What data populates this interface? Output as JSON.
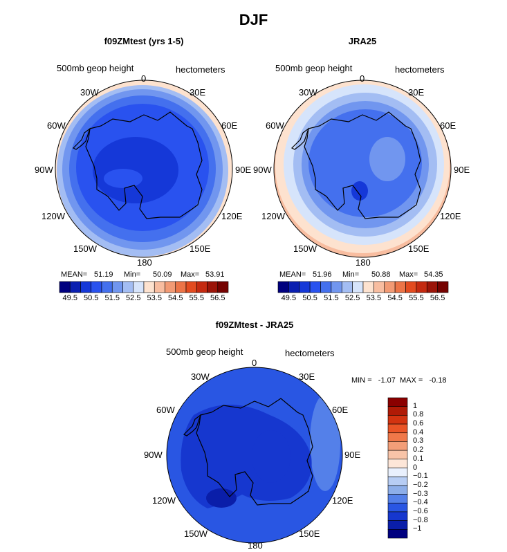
{
  "figure": {
    "title": "DJF"
  },
  "panels": [
    {
      "title": "f09ZMtest (yrs 1-5)",
      "field_label": "500mb geop height",
      "units_label": "hectometers",
      "stats": {
        "mean_label": "MEAN=",
        "mean": "51.19",
        "min_label": "Min=",
        "min": "50.09",
        "max_label": "Max=",
        "max": "53.91"
      }
    },
    {
      "title": "JRA25",
      "field_label": "500mb geop height",
      "units_label": "hectometers",
      "stats": {
        "mean_label": "MEAN=",
        "mean": "51.96",
        "min_label": "Min=",
        "min": "50.88",
        "max_label": "Max=",
        "max": "54.35"
      }
    },
    {
      "title": "f09ZMtest - JRA25",
      "field_label": "500mb geop height",
      "units_label": "hectometers",
      "stats": {
        "text": "MIN =   -1.07  MAX =   -0.18"
      }
    }
  ],
  "longitude_labels": [
    "0",
    "30E",
    "60E",
    "90E",
    "120E",
    "150E",
    "180",
    "150W",
    "120W",
    "90W",
    "60W",
    "30W"
  ],
  "colorbar_horizontal": {
    "tick_labels": [
      "49.5",
      "50.5",
      "51.5",
      "52.5",
      "53.5",
      "54.5",
      "55.5",
      "56.5"
    ],
    "colors": [
      "#00007f",
      "#0a1fb0",
      "#1538d8",
      "#2952ef",
      "#4470ee",
      "#7196ef",
      "#a3bdf3",
      "#d6e4fb",
      "#fde2cf",
      "#f8bda0",
      "#f29a74",
      "#ec7447",
      "#e34b1f",
      "#c42a10",
      "#9b1408",
      "#750200"
    ]
  },
  "colorbar_vertical": {
    "tick_labels": [
      "1",
      "0.8",
      "0.6",
      "0.4",
      "0.3",
      "0.2",
      "0.1",
      "0",
      "−0.1",
      "−0.2",
      "−0.3",
      "−0.4",
      "−0.6",
      "−0.8",
      "−1"
    ],
    "colors": [
      "#8b0000",
      "#b01a06",
      "#d33310",
      "#ea5426",
      "#f07849",
      "#f39e78",
      "#f8c4a8",
      "#fde6d8",
      "#e9f0fd",
      "#b7cdf4",
      "#8daee9",
      "#5480e9",
      "#2956e3",
      "#1637cf",
      "#0a1ea9",
      "#00007f"
    ]
  },
  "map_data": {
    "projection": "south polar stereographic",
    "panel_a": {
      "mean": 51.19,
      "min": 50.09,
      "max": 53.91
    },
    "panel_b": {
      "mean": 51.96,
      "min": 50.88,
      "max": 54.35
    },
    "panel_diff": {
      "min": -1.07,
      "max": -0.18
    }
  }
}
